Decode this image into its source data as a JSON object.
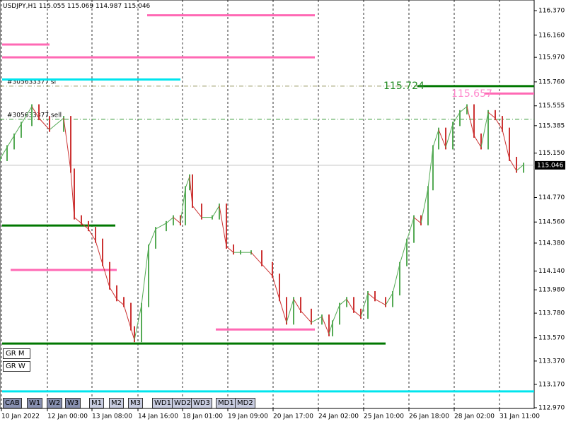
{
  "header": "USDJPY,H1  115.055 115.069 114.987 115.046",
  "buttons": [
    "CAB",
    "W1",
    "W2",
    "W3",
    "M1",
    "M2",
    "M3",
    "WD1",
    "WD2",
    "WD3",
    "MD1",
    "MD2"
  ],
  "side_buttons": [
    "GR M",
    "GR W"
  ],
  "chart_data": {
    "type": "bar-path",
    "x": [
      0,
      10,
      20,
      30,
      45,
      55,
      70,
      90,
      100,
      105,
      115,
      125,
      135,
      145,
      155,
      165,
      175,
      185,
      190,
      200,
      210,
      220,
      235,
      245,
      255,
      262,
      268,
      272,
      285,
      300,
      310,
      320,
      330,
      340,
      355,
      370,
      385,
      395,
      405,
      415,
      425,
      440,
      455,
      465,
      470,
      480,
      490,
      500,
      510,
      520,
      530,
      545,
      555,
      565,
      575,
      585,
      595,
      605,
      612,
      620,
      630,
      640,
      650,
      660,
      670,
      680,
      690,
      700,
      710,
      720,
      730,
      740
    ],
    "values": [
      115.1,
      115.2,
      115.3,
      115.4,
      115.55,
      115.45,
      115.35,
      115.45,
      115.0,
      114.6,
      114.55,
      114.5,
      114.4,
      114.2,
      114.0,
      113.9,
      113.85,
      113.65,
      113.55,
      113.85,
      114.35,
      114.5,
      114.55,
      114.6,
      114.55,
      114.85,
      114.95,
      114.7,
      114.6,
      114.6,
      114.7,
      114.35,
      114.3,
      114.3,
      114.3,
      114.2,
      114.1,
      113.9,
      113.7,
      113.9,
      113.8,
      113.7,
      113.75,
      113.6,
      113.7,
      113.85,
      113.9,
      113.8,
      113.75,
      113.95,
      113.9,
      113.85,
      113.95,
      114.2,
      114.4,
      114.6,
      114.55,
      114.85,
      115.2,
      115.35,
      115.2,
      115.4,
      115.5,
      115.55,
      115.3,
      115.2,
      115.5,
      115.45,
      115.35,
      115.1,
      115.0,
      115.05
    ],
    "up_color": "#55aa55",
    "down_color": "#cc3333",
    "xlim": [
      0,
      755
    ],
    "ylim": [
      112.964,
      116.461
    ],
    "xticks": [
      {
        "value": 2,
        "label": "10 Jan 2022"
      },
      {
        "value": 67,
        "label": "12 Jan 00:00"
      },
      {
        "value": 130,
        "label": "13 Jan 08:00"
      },
      {
        "value": 195,
        "label": "14 Jan 16:00"
      },
      {
        "value": 258,
        "label": "18 Jan 01:00"
      },
      {
        "value": 322,
        "label": "19 Jan 09:00"
      },
      {
        "value": 386,
        "label": "20 Jan 17:00"
      },
      {
        "value": 450,
        "label": "24 Jan 02:00"
      },
      {
        "value": 514,
        "label": "25 Jan 10:00"
      },
      {
        "value": 578,
        "label": "26 Jan 18:00"
      },
      {
        "value": 642,
        "label": "28 Jan 02:00"
      },
      {
        "value": 706,
        "label": "31 Jan 11:00"
      }
    ],
    "yticks": [
      {
        "value": 116.37,
        "label": "116.370"
      },
      {
        "value": 116.16,
        "label": "116.160"
      },
      {
        "value": 115.97,
        "label": "115.970"
      },
      {
        "value": 115.76,
        "label": "115.760"
      },
      {
        "value": 115.555,
        "label": "115.555"
      },
      {
        "value": 115.385,
        "label": "115.385"
      },
      {
        "value": 115.15,
        "label": "115.150"
      },
      {
        "value": 114.77,
        "label": "114.770"
      },
      {
        "value": 114.56,
        "label": "114.560"
      },
      {
        "value": 114.38,
        "label": "114.380"
      },
      {
        "value": 114.14,
        "label": "114.140"
      },
      {
        "value": 113.98,
        "label": "113.980"
      },
      {
        "value": 113.78,
        "label": "113.780"
      },
      {
        "value": 113.57,
        "label": "113.570"
      },
      {
        "value": 113.37,
        "label": "113.370"
      },
      {
        "value": 113.17,
        "label": "113.170"
      },
      {
        "value": 112.97,
        "label": "112.970"
      }
    ],
    "grid": true,
    "current": {
      "value": 115.046,
      "label": "115.046"
    },
    "levels": [
      {
        "value": 116.33,
        "color": "#ff69b4",
        "x": [
          208,
          445
        ]
      },
      {
        "value": 116.08,
        "color": "#ff69b4",
        "x": [
          3,
          70
        ]
      },
      {
        "value": 115.97,
        "color": "#ff69b4",
        "x": [
          3,
          445
        ]
      },
      {
        "value": 115.78,
        "color": "#00e5ee",
        "x": [
          3,
          255
        ]
      },
      {
        "value": 115.724,
        "color": "#007700",
        "x": [
          590,
          755
        ]
      },
      {
        "value": 115.66,
        "color": "#ff69b4",
        "x": [
          685,
          755
        ]
      },
      {
        "value": 114.53,
        "color": "#007700",
        "x": [
          3,
          163
        ]
      },
      {
        "value": 114.15,
        "color": "#ff69b4",
        "x": [
          15,
          165
        ]
      },
      {
        "value": 113.64,
        "color": "#ff69b4",
        "x": [
          305,
          445
        ]
      },
      {
        "value": 113.52,
        "color": "#007700",
        "x": [
          3,
          545
        ]
      },
      {
        "value": 113.11,
        "color": "#00e5ee",
        "x": [
          3,
          755
        ]
      }
    ],
    "dashed_levels": [
      {
        "value": 115.724,
        "color": "#999966",
        "label": "#305633377 sl"
      },
      {
        "value": 115.44,
        "color": "#339933",
        "label": "#305633377 sell"
      }
    ],
    "price_labels": [
      {
        "value": 115.724,
        "label": "115.724",
        "color": "#228b22",
        "x": 542
      },
      {
        "value": 115.657,
        "label": "115.657",
        "color": "#ff88cc",
        "x": 638
      }
    ]
  }
}
